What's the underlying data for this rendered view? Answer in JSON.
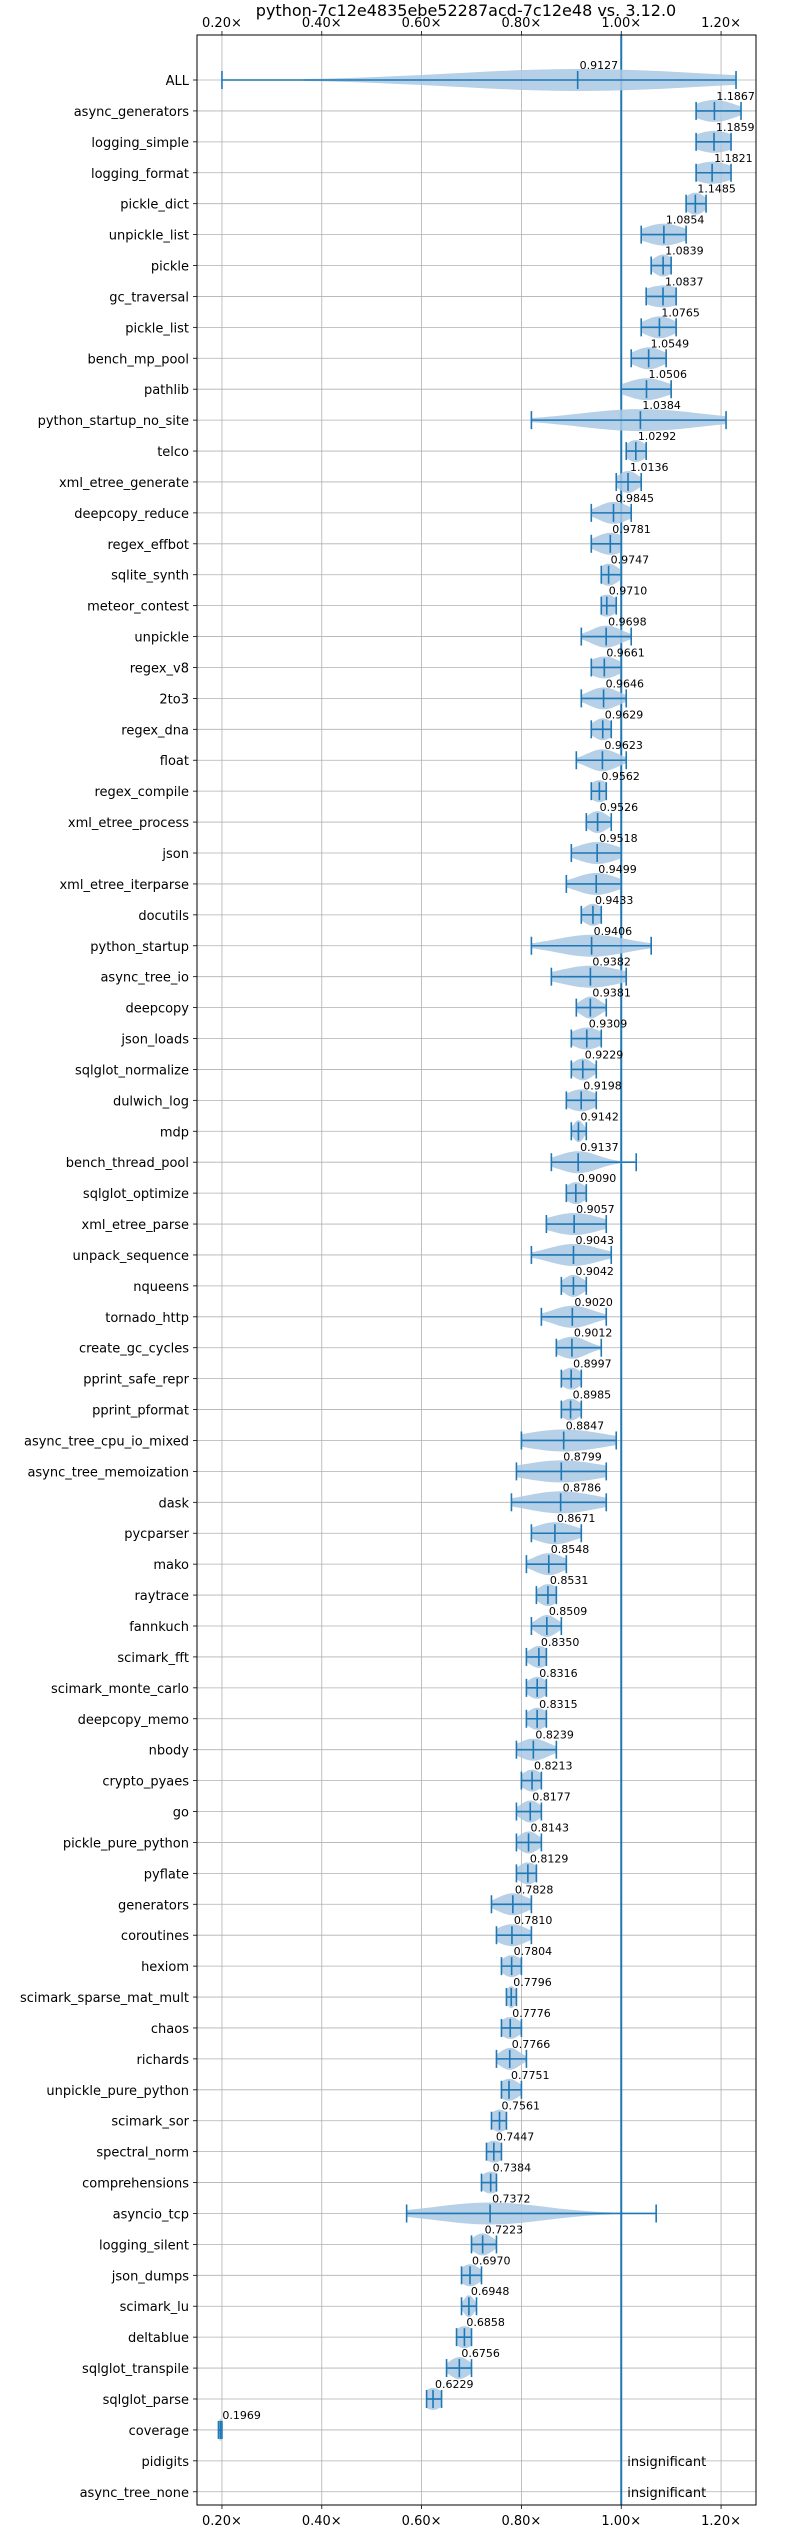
{
  "chart_data": {
    "type": "violin",
    "title": "python-7c12e4835ebe52287acd-7c12e48 vs. 3.12.0",
    "xlabel": "",
    "ylabel": "",
    "xlim": [
      0.15,
      1.27
    ],
    "x_ticks": [
      0.2,
      0.4,
      0.6,
      0.8,
      1.0,
      1.2
    ],
    "x_tick_labels": [
      "0.20×",
      "0.40×",
      "0.60×",
      "0.80×",
      "1.00×",
      "1.20×"
    ],
    "reference_line": 1.0,
    "grid": true,
    "color": "#1f77b4",
    "violin_fill": "#a9c8e4",
    "rows": [
      {
        "label": "ALL",
        "median": 0.9127,
        "min": 0.2,
        "max": 1.23,
        "spread": 0.25
      },
      {
        "label": "async_generators",
        "median": 1.1867,
        "min": 1.15,
        "max": 1.24,
        "spread": 0.04
      },
      {
        "label": "logging_simple",
        "median": 1.1859,
        "min": 1.15,
        "max": 1.22,
        "spread": 0.04
      },
      {
        "label": "logging_format",
        "median": 1.1821,
        "min": 1.15,
        "max": 1.22,
        "spread": 0.04
      },
      {
        "label": "pickle_dict",
        "median": 1.1485,
        "min": 1.13,
        "max": 1.17,
        "spread": 0.02
      },
      {
        "label": "unpickle_list",
        "median": 1.0854,
        "min": 1.04,
        "max": 1.13,
        "spread": 0.04
      },
      {
        "label": "pickle",
        "median": 1.0839,
        "min": 1.06,
        "max": 1.1,
        "spread": 0.02
      },
      {
        "label": "gc_traversal",
        "median": 1.0837,
        "min": 1.05,
        "max": 1.11,
        "spread": 0.04
      },
      {
        "label": "pickle_list",
        "median": 1.0765,
        "min": 1.04,
        "max": 1.11,
        "spread": 0.03
      },
      {
        "label": "bench_mp_pool",
        "median": 1.0549,
        "min": 1.02,
        "max": 1.09,
        "spread": 0.03
      },
      {
        "label": "pathlib",
        "median": 1.0506,
        "min": 1.0,
        "max": 1.1,
        "spread": 0.04
      },
      {
        "label": "python_startup_no_site",
        "median": 1.0384,
        "min": 0.82,
        "max": 1.21,
        "spread": 0.12
      },
      {
        "label": "telco",
        "median": 1.0292,
        "min": 1.01,
        "max": 1.05,
        "spread": 0.02
      },
      {
        "label": "xml_etree_generate",
        "median": 1.0136,
        "min": 0.99,
        "max": 1.04,
        "spread": 0.02
      },
      {
        "label": "deepcopy_reduce",
        "median": 0.9845,
        "min": 0.94,
        "max": 1.02,
        "spread": 0.03
      },
      {
        "label": "regex_effbot",
        "median": 0.9781,
        "min": 0.94,
        "max": 1.0,
        "spread": 0.03
      },
      {
        "label": "sqlite_synth",
        "median": 0.9747,
        "min": 0.96,
        "max": 1.0,
        "spread": 0.02
      },
      {
        "label": "meteor_contest",
        "median": 0.971,
        "min": 0.96,
        "max": 0.99,
        "spread": 0.02
      },
      {
        "label": "unpickle",
        "median": 0.9698,
        "min": 0.92,
        "max": 1.02,
        "spread": 0.03
      },
      {
        "label": "regex_v8",
        "median": 0.9661,
        "min": 0.94,
        "max": 1.0,
        "spread": 0.03
      },
      {
        "label": "2to3",
        "median": 0.9646,
        "min": 0.92,
        "max": 1.01,
        "spread": 0.03
      },
      {
        "label": "regex_dna",
        "median": 0.9629,
        "min": 0.94,
        "max": 0.98,
        "spread": 0.02
      },
      {
        "label": "float",
        "median": 0.9623,
        "min": 0.91,
        "max": 1.01,
        "spread": 0.03
      },
      {
        "label": "regex_compile",
        "median": 0.9562,
        "min": 0.94,
        "max": 0.97,
        "spread": 0.02
      },
      {
        "label": "xml_etree_process",
        "median": 0.9526,
        "min": 0.93,
        "max": 0.98,
        "spread": 0.02
      },
      {
        "label": "json",
        "median": 0.9518,
        "min": 0.9,
        "max": 1.0,
        "spread": 0.04
      },
      {
        "label": "xml_etree_iterparse",
        "median": 0.9499,
        "min": 0.89,
        "max": 1.0,
        "spread": 0.04
      },
      {
        "label": "docutils",
        "median": 0.9433,
        "min": 0.92,
        "max": 0.96,
        "spread": 0.02
      },
      {
        "label": "python_startup",
        "median": 0.9406,
        "min": 0.82,
        "max": 1.06,
        "spread": 0.07
      },
      {
        "label": "async_tree_io",
        "median": 0.9382,
        "min": 0.86,
        "max": 1.01,
        "spread": 0.06
      },
      {
        "label": "deepcopy",
        "median": 0.9381,
        "min": 0.91,
        "max": 0.97,
        "spread": 0.02
      },
      {
        "label": "json_loads",
        "median": 0.9309,
        "min": 0.9,
        "max": 0.96,
        "spread": 0.03
      },
      {
        "label": "sqlglot_normalize",
        "median": 0.9229,
        "min": 0.9,
        "max": 0.95,
        "spread": 0.02
      },
      {
        "label": "dulwich_log",
        "median": 0.9198,
        "min": 0.89,
        "max": 0.95,
        "spread": 0.03
      },
      {
        "label": "mdp",
        "median": 0.9142,
        "min": 0.9,
        "max": 0.93,
        "spread": 0.01
      },
      {
        "label": "bench_thread_pool",
        "median": 0.9137,
        "min": 0.86,
        "max": 1.03,
        "spread": 0.04
      },
      {
        "label": "sqlglot_optimize",
        "median": 0.909,
        "min": 0.89,
        "max": 0.93,
        "spread": 0.02
      },
      {
        "label": "xml_etree_parse",
        "median": 0.9057,
        "min": 0.85,
        "max": 0.97,
        "spread": 0.05
      },
      {
        "label": "unpack_sequence",
        "median": 0.9043,
        "min": 0.82,
        "max": 0.98,
        "spread": 0.05
      },
      {
        "label": "nqueens",
        "median": 0.9042,
        "min": 0.88,
        "max": 0.93,
        "spread": 0.02
      },
      {
        "label": "tornado_http",
        "median": 0.902,
        "min": 0.84,
        "max": 0.97,
        "spread": 0.04
      },
      {
        "label": "create_gc_cycles",
        "median": 0.9012,
        "min": 0.87,
        "max": 0.96,
        "spread": 0.03
      },
      {
        "label": "pprint_safe_repr",
        "median": 0.8997,
        "min": 0.88,
        "max": 0.92,
        "spread": 0.02
      },
      {
        "label": "pprint_pformat",
        "median": 0.8985,
        "min": 0.88,
        "max": 0.92,
        "spread": 0.02
      },
      {
        "label": "async_tree_cpu_io_mixed",
        "median": 0.8847,
        "min": 0.8,
        "max": 0.99,
        "spread": 0.08
      },
      {
        "label": "async_tree_memoization",
        "median": 0.8799,
        "min": 0.79,
        "max": 0.97,
        "spread": 0.08
      },
      {
        "label": "dask",
        "median": 0.8786,
        "min": 0.78,
        "max": 0.97,
        "spread": 0.07
      },
      {
        "label": "pycparser",
        "median": 0.8671,
        "min": 0.82,
        "max": 0.92,
        "spread": 0.04
      },
      {
        "label": "mako",
        "median": 0.8548,
        "min": 0.81,
        "max": 0.89,
        "spread": 0.03
      },
      {
        "label": "raytrace",
        "median": 0.8531,
        "min": 0.83,
        "max": 0.87,
        "spread": 0.02
      },
      {
        "label": "fannkuch",
        "median": 0.8509,
        "min": 0.82,
        "max": 0.88,
        "spread": 0.02
      },
      {
        "label": "scimark_fft",
        "median": 0.835,
        "min": 0.81,
        "max": 0.85,
        "spread": 0.02
      },
      {
        "label": "scimark_monte_carlo",
        "median": 0.8316,
        "min": 0.81,
        "max": 0.85,
        "spread": 0.02
      },
      {
        "label": "deepcopy_memo",
        "median": 0.8315,
        "min": 0.81,
        "max": 0.85,
        "spread": 0.02
      },
      {
        "label": "nbody",
        "median": 0.8239,
        "min": 0.79,
        "max": 0.87,
        "spread": 0.03
      },
      {
        "label": "crypto_pyaes",
        "median": 0.8213,
        "min": 0.8,
        "max": 0.84,
        "spread": 0.02
      },
      {
        "label": "go",
        "median": 0.8177,
        "min": 0.79,
        "max": 0.84,
        "spread": 0.02
      },
      {
        "label": "pickle_pure_python",
        "median": 0.8143,
        "min": 0.79,
        "max": 0.84,
        "spread": 0.02
      },
      {
        "label": "pyflate",
        "median": 0.8129,
        "min": 0.79,
        "max": 0.83,
        "spread": 0.02
      },
      {
        "label": "generators",
        "median": 0.7828,
        "min": 0.74,
        "max": 0.82,
        "spread": 0.03
      },
      {
        "label": "coroutines",
        "median": 0.781,
        "min": 0.75,
        "max": 0.82,
        "spread": 0.03
      },
      {
        "label": "hexiom",
        "median": 0.7804,
        "min": 0.76,
        "max": 0.8,
        "spread": 0.02
      },
      {
        "label": "scimark_sparse_mat_mult",
        "median": 0.7796,
        "min": 0.77,
        "max": 0.79,
        "spread": 0.01
      },
      {
        "label": "chaos",
        "median": 0.7776,
        "min": 0.76,
        "max": 0.8,
        "spread": 0.02
      },
      {
        "label": "richards",
        "median": 0.7766,
        "min": 0.75,
        "max": 0.81,
        "spread": 0.02
      },
      {
        "label": "unpickle_pure_python",
        "median": 0.7751,
        "min": 0.76,
        "max": 0.8,
        "spread": 0.02
      },
      {
        "label": "scimark_sor",
        "median": 0.7561,
        "min": 0.74,
        "max": 0.77,
        "spread": 0.02
      },
      {
        "label": "spectral_norm",
        "median": 0.7447,
        "min": 0.73,
        "max": 0.76,
        "spread": 0.02
      },
      {
        "label": "comprehensions",
        "median": 0.7384,
        "min": 0.72,
        "max": 0.75,
        "spread": 0.02
      },
      {
        "label": "asyncio_tcp",
        "median": 0.7372,
        "min": 0.57,
        "max": 1.07,
        "spread": 0.11
      },
      {
        "label": "logging_silent",
        "median": 0.7223,
        "min": 0.7,
        "max": 0.75,
        "spread": 0.02
      },
      {
        "label": "json_dumps",
        "median": 0.697,
        "min": 0.68,
        "max": 0.72,
        "spread": 0.02
      },
      {
        "label": "scimark_lu",
        "median": 0.6948,
        "min": 0.68,
        "max": 0.71,
        "spread": 0.01
      },
      {
        "label": "deltablue",
        "median": 0.6858,
        "min": 0.67,
        "max": 0.7,
        "spread": 0.02
      },
      {
        "label": "sqlglot_transpile",
        "median": 0.6756,
        "min": 0.65,
        "max": 0.7,
        "spread": 0.02
      },
      {
        "label": "sqlglot_parse",
        "median": 0.6229,
        "min": 0.61,
        "max": 0.64,
        "spread": 0.02
      },
      {
        "label": "coverage",
        "median": 0.1969,
        "min": 0.193,
        "max": 0.2,
        "spread": 0.004
      },
      {
        "label": "pidigits",
        "median": null,
        "note": "insignificant"
      },
      {
        "label": "async_tree_none",
        "median": null,
        "note": "insignificant"
      }
    ]
  }
}
